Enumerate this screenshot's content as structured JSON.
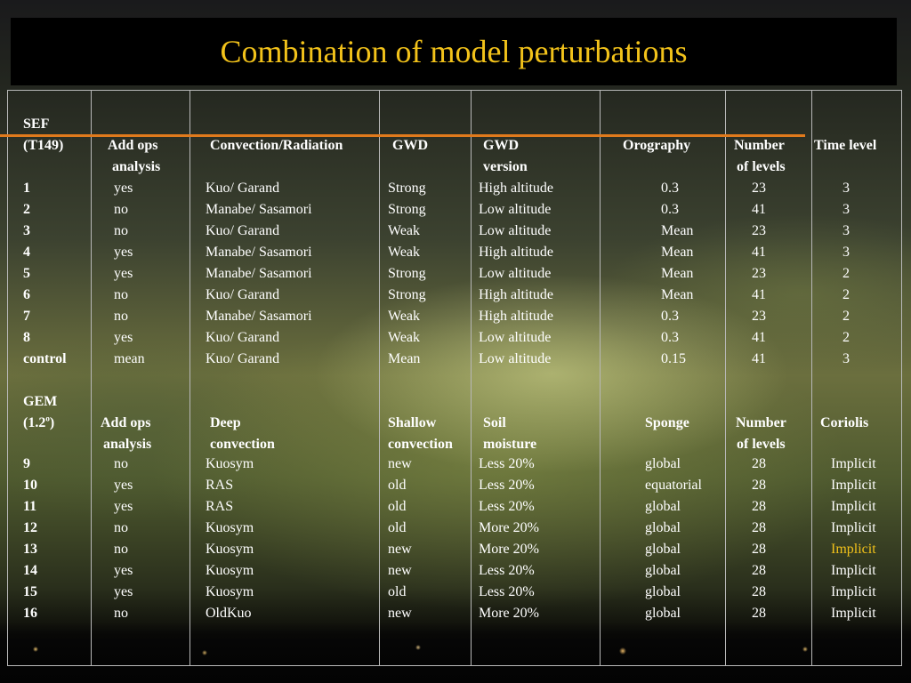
{
  "title": "Combination of model perturbations",
  "colors": {
    "title": "#f2c21a",
    "accent_line": "#e07a1c",
    "grid": "#b8b8b8",
    "highlight": "#f2c21a"
  },
  "sef": {
    "label1": "SEF",
    "label2": "(T149)",
    "headers": {
      "col1a": "Add ops",
      "col1b": "analysis",
      "col2": "Convection/Radiation",
      "col3": "GWD",
      "col4a": "GWD",
      "col4b": "version",
      "col5": "Orography",
      "col6a": "Number",
      "col6b": "of levels",
      "col7": "Time level"
    },
    "rows": [
      {
        "id": "1",
        "ops": "yes",
        "conv": "Kuo/ Garand",
        "gwd": "Strong",
        "ver": "High altitude",
        "oro": "0.3",
        "lev": "23",
        "tl": "3"
      },
      {
        "id": "2",
        "ops": "no",
        "conv": "Manabe/ Sasamori",
        "gwd": "Strong",
        "ver": "Low altitude",
        "oro": "0.3",
        "lev": "41",
        "tl": "3"
      },
      {
        "id": "3",
        "ops": "no",
        "conv": "Kuo/ Garand",
        "gwd": "Weak",
        "ver": "Low altitude",
        "oro": "Mean",
        "lev": "23",
        "tl": "3"
      },
      {
        "id": "4",
        "ops": "yes",
        "conv": "Manabe/ Sasamori",
        "gwd": "Weak",
        "ver": "High altitude",
        "oro": "Mean",
        "lev": "41",
        "tl": "3"
      },
      {
        "id": "5",
        "ops": "yes",
        "conv": "Manabe/ Sasamori",
        "gwd": "Strong",
        "ver": "Low altitude",
        "oro": "Mean",
        "lev": "23",
        "tl": "2"
      },
      {
        "id": "6",
        "ops": "no",
        "conv": "Kuo/ Garand",
        "gwd": "Strong",
        "ver": "High altitude",
        "oro": "Mean",
        "lev": "41",
        "tl": "2"
      },
      {
        "id": "7",
        "ops": "no",
        "conv": "Manabe/ Sasamori",
        "gwd": "Weak",
        "ver": "High altitude",
        "oro": "0.3",
        "lev": "23",
        "tl": "2"
      },
      {
        "id": "8",
        "ops": "yes",
        "conv": "Kuo/ Garand",
        "gwd": "Weak",
        "ver": "Low altitude",
        "oro": "0.3",
        "lev": "41",
        "tl": "2"
      },
      {
        "id": "control",
        "ops": "mean",
        "conv": "Kuo/ Garand",
        "gwd": "Mean",
        "ver": "Low altitude",
        "oro": "0.15",
        "lev": "41",
        "tl": "3"
      }
    ]
  },
  "gem": {
    "label1": "GEM",
    "label2_main": "(1.2",
    "label2_sup": "o",
    "label2_end": ")",
    "headers": {
      "col1a": "Add ops",
      "col1b": "analysis",
      "col2a": "Deep",
      "col2b": "convection",
      "col3a": "Shallow",
      "col3b": "convection",
      "col4a": "Soil",
      "col4b": "moisture",
      "col5": "Sponge",
      "col6a": "Number",
      "col6b": "of levels",
      "col7": "Coriolis"
    },
    "rows": [
      {
        "id": "9",
        "ops": "no",
        "conv": "Kuosym",
        "sh": "new",
        "soil": "Less 20%",
        "sp": "global",
        "lev": "28",
        "cor": "Implicit"
      },
      {
        "id": "10",
        "ops": "yes",
        "conv": "RAS",
        "sh": "old",
        "soil": "Less 20%",
        "sp": "equatorial",
        "lev": "28",
        "cor": "Implicit"
      },
      {
        "id": "11",
        "ops": "yes",
        "conv": "RAS",
        "sh": "old",
        "soil": "Less 20%",
        "sp": "global",
        "lev": "28",
        "cor": "Implicit"
      },
      {
        "id": "12",
        "ops": "no",
        "conv": "Kuosym",
        "sh": "old",
        "soil": "More 20%",
        "sp": "global",
        "lev": "28",
        "cor": "Implicit"
      },
      {
        "id": "13",
        "ops": "no",
        "conv": "Kuosym",
        "sh": "new",
        "soil": "More 20%",
        "sp": "global",
        "lev": "28",
        "cor": "Implicit"
      },
      {
        "id": "14",
        "ops": "yes",
        "conv": "Kuosym",
        "sh": "new",
        "soil": "Less 20%",
        "sp": "global",
        "lev": "28",
        "cor": "Implicit"
      },
      {
        "id": "15",
        "ops": "yes",
        "conv": "Kuosym",
        "sh": "old",
        "soil": "Less 20%",
        "sp": "global",
        "lev": "28",
        "cor": "Implicit"
      },
      {
        "id": "16",
        "ops": "no",
        "conv": "OldKuo",
        "sh": "new",
        "soil": "More 20%",
        "sp": "global",
        "lev": "28",
        "cor": "Implicit"
      }
    ]
  }
}
